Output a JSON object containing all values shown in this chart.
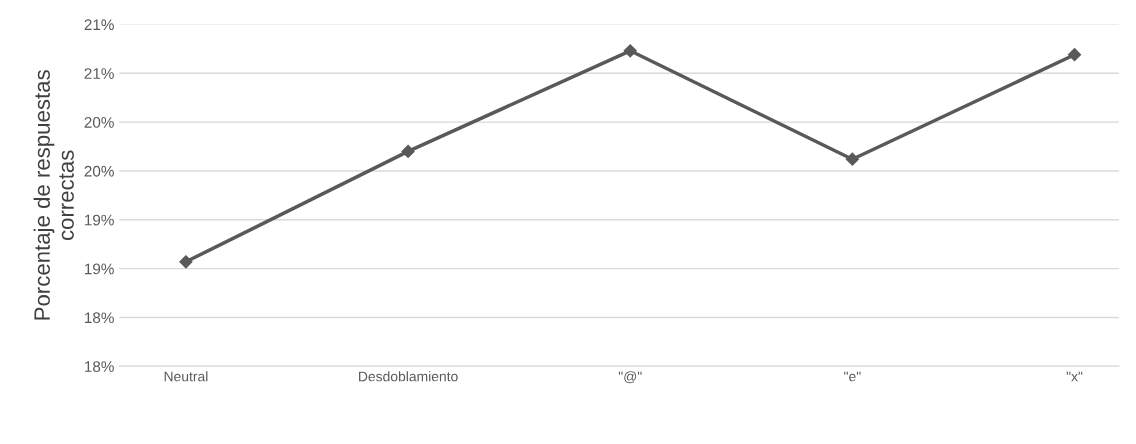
{
  "chart_data": {
    "type": "line",
    "ylabel": "Porcentaje de respuestas\ncorrectas",
    "categories": [
      "Neutral",
      "Desdoblamiento",
      "\"@\"",
      "\"e\"",
      "\"x\""
    ],
    "series": [
      {
        "color": "#595959",
        "values": [
          18.57,
          19.7,
          20.73,
          19.62,
          20.69
        ]
      }
    ],
    "ylim": [
      17.5,
      21.0
    ],
    "yticks": [
      {
        "value": 17.5,
        "label": "18%"
      },
      {
        "value": 18.0,
        "label": "18%"
      },
      {
        "value": 18.5,
        "label": "19%"
      },
      {
        "value": 19.0,
        "label": "19%"
      },
      {
        "value": 19.5,
        "label": "20%"
      },
      {
        "value": 20.0,
        "label": "20%"
      },
      {
        "value": 20.5,
        "label": "21%"
      },
      {
        "value": 21.0,
        "label": "21%"
      }
    ],
    "grid": "y",
    "marker": "diamond",
    "line_style": "solid"
  }
}
